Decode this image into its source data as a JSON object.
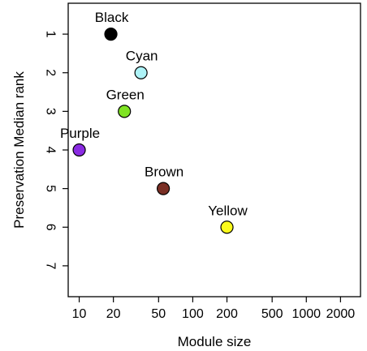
{
  "chart_data": {
    "type": "scatter",
    "xlabel": "Module size",
    "ylabel": "Preservation Median rank",
    "x_scale": "log",
    "xlim": [
      8,
      3000
    ],
    "ylim": [
      0.2,
      7.8
    ],
    "y_inverted": true,
    "grid": false,
    "x_ticks": [
      {
        "value": 10,
        "label": "10"
      },
      {
        "value": 20,
        "label": "20"
      },
      {
        "value": 50,
        "label": "50"
      },
      {
        "value": 100,
        "label": "100"
      },
      {
        "value": 200,
        "label": "200"
      },
      {
        "value": 500,
        "label": "500"
      },
      {
        "value": 1000,
        "label": "1000"
      },
      {
        "value": 2000,
        "label": "2000"
      }
    ],
    "y_ticks": [
      {
        "value": 1,
        "label": "1"
      },
      {
        "value": 2,
        "label": "2"
      },
      {
        "value": 3,
        "label": "3"
      },
      {
        "value": 4,
        "label": "4"
      },
      {
        "value": 5,
        "label": "5"
      },
      {
        "value": 6,
        "label": "6"
      },
      {
        "value": 7,
        "label": "7"
      }
    ],
    "points": [
      {
        "label": "Black",
        "x": 19,
        "y": 1,
        "color": "#000000"
      },
      {
        "label": "Cyan",
        "x": 35,
        "y": 2,
        "color": "#aef3f7"
      },
      {
        "label": "Green",
        "x": 25,
        "y": 3,
        "color": "#7fe323"
      },
      {
        "label": "Purple",
        "x": 10,
        "y": 4,
        "color": "#8a2be2"
      },
      {
        "label": "Brown",
        "x": 55,
        "y": 5,
        "color": "#7a2f25"
      },
      {
        "label": "Yellow",
        "x": 200,
        "y": 6,
        "color": "#fbfb1c"
      }
    ]
  }
}
